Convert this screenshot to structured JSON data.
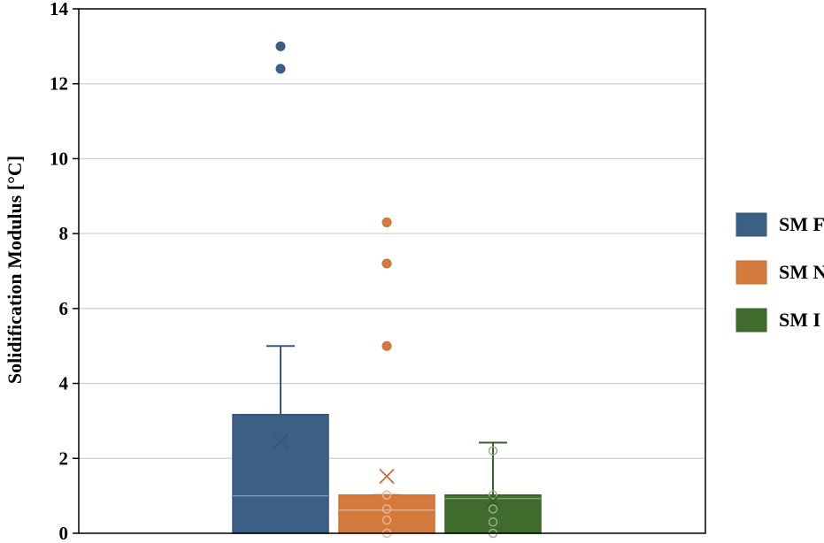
{
  "chart_data": {
    "type": "box",
    "title": "",
    "xlabel": "",
    "ylabel": "Solidification Modulus [°C]",
    "ylim": [
      0,
      14
    ],
    "yticks": [
      "0",
      "2",
      "4",
      "6",
      "8",
      "10",
      "12",
      "14"
    ],
    "grid": true,
    "legend_position": "right",
    "series": [
      {
        "name": "SM F",
        "color": "#3b5f85",
        "min": 0,
        "q1": 0,
        "median": 1.0,
        "q3": 3.17,
        "max": 5.0,
        "mean": 2.45,
        "outliers": [
          12.4,
          13.0
        ],
        "points": []
      },
      {
        "name": "SM N",
        "color": "#d57a3d",
        "min": 0,
        "q1": 0,
        "median": 0.62,
        "q3": 1.02,
        "max": 1.02,
        "mean": 1.52,
        "outliers": [
          5.0,
          7.2,
          8.3
        ],
        "points": [
          0,
          0.35,
          0.65,
          1.02
        ]
      },
      {
        "name": "SM I",
        "color": "#3f6b2c",
        "min": 0,
        "q1": 0,
        "median": 0.93,
        "q3": 1.02,
        "max": 2.42,
        "mean": 0.85,
        "outliers": [],
        "points": [
          0,
          0.3,
          0.65,
          1.02,
          2.2
        ]
      }
    ]
  }
}
